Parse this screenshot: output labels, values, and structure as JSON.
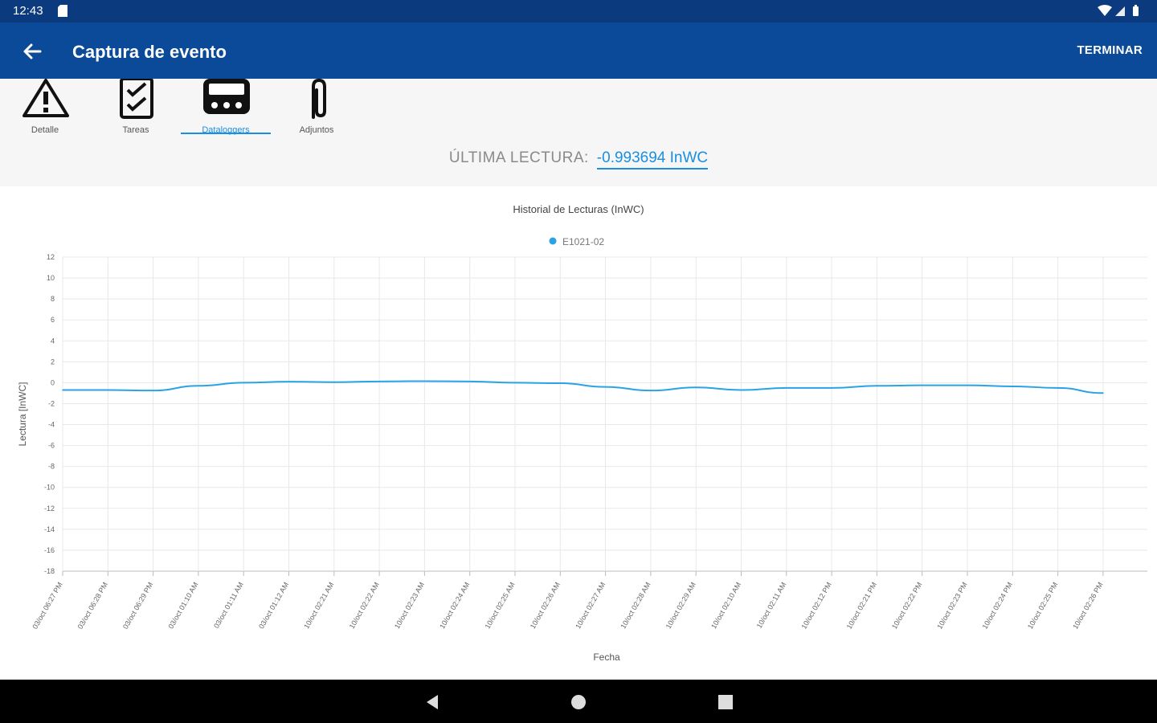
{
  "status": {
    "time": "12:43"
  },
  "appbar": {
    "title": "Captura de evento",
    "finish_label": "TERMINAR"
  },
  "tabs": [
    {
      "label": "Detalle",
      "icon": "warning-icon"
    },
    {
      "label": "Tareas",
      "icon": "checklist-icon"
    },
    {
      "label": "Dataloggers",
      "icon": "datalogger-icon",
      "active": true
    },
    {
      "label": "Adjuntos",
      "icon": "paperclip-icon"
    }
  ],
  "reading": {
    "label": "ÚLTIMA LECTURA:",
    "value": "-0.993694 InWC"
  },
  "colors": {
    "status_bar": "#0b3a7e",
    "app_bar": "#0b4a98",
    "accent": "#1a8fe0",
    "series": "#29a3e6"
  },
  "chart_data": {
    "type": "line",
    "title": "Historial de Lecturas (InWC)",
    "xlabel": "Fecha",
    "ylabel": "Lectura [InWC]",
    "ylim": [
      -18,
      12
    ],
    "yticks": [
      12,
      10,
      8,
      6,
      4,
      2,
      0,
      -2,
      -4,
      -6,
      -8,
      -10,
      -12,
      -14,
      -16,
      -18
    ],
    "grid": true,
    "legend_position": "top-center",
    "categories": [
      "03/oct 06:27 PM",
      "03/oct 06:28 PM",
      "03/oct 06:29 PM",
      "03/oct 01:10 AM",
      "03/oct 01:11 AM",
      "03/oct 01:12 AM",
      "10/oct 02:21 AM",
      "10/oct 02:22 AM",
      "10/oct 02:23 AM",
      "10/oct 02:24 AM",
      "10/oct 02:25 AM",
      "10/oct 02:26 AM",
      "10/oct 02:27 AM",
      "10/oct 02:28 AM",
      "10/oct 02:29 AM",
      "10/oct 02:10 AM",
      "10/oct 02:11 AM",
      "10/oct 02:12 PM",
      "10/oct 02:21 PM",
      "10/oct 02:22 PM",
      "10/oct 02:23 PM",
      "10/oct 02:24 PM",
      "10/oct 02:25 PM",
      "10/oct 02:26 PM"
    ],
    "series": [
      {
        "name": "E1021-02",
        "values": [
          -0.7,
          -0.7,
          -0.75,
          -0.3,
          0.0,
          0.1,
          0.05,
          0.12,
          0.15,
          0.12,
          0.0,
          -0.05,
          -0.4,
          -0.75,
          -0.45,
          -0.7,
          -0.5,
          -0.5,
          -0.3,
          -0.25,
          -0.25,
          -0.35,
          -0.5,
          -0.99
        ]
      }
    ]
  }
}
